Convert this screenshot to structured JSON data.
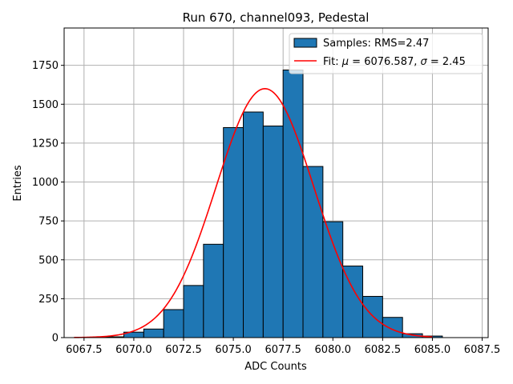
{
  "chart_data": {
    "type": "bar",
    "title": "Run 670, channel093, Pedestal",
    "xlabel": "ADC Counts",
    "ylabel": "Entries",
    "xlim": [
      6066.5,
      6087.8
    ],
    "ylim": [
      0,
      1990
    ],
    "grid": true,
    "legend_position": "top-right",
    "x_ticks": [
      "6067.5",
      "6070.0",
      "6072.5",
      "6075.0",
      "6077.5",
      "6080.0",
      "6082.5",
      "6085.0",
      "6087.5"
    ],
    "x_tick_values": [
      6067.5,
      6070.0,
      6072.5,
      6075.0,
      6077.5,
      6080.0,
      6082.5,
      6085.0,
      6087.5
    ],
    "y_ticks": [
      "0",
      "250",
      "500",
      "750",
      "1000",
      "1250",
      "1500",
      "1750"
    ],
    "y_tick_values": [
      0,
      250,
      500,
      750,
      1000,
      1250,
      1500,
      1750
    ],
    "bar_width": 1.0,
    "bins": [
      {
        "x": 6068.0,
        "value": 0
      },
      {
        "x": 6069.0,
        "value": 5
      },
      {
        "x": 6070.0,
        "value": 35
      },
      {
        "x": 6071.0,
        "value": 55
      },
      {
        "x": 6072.0,
        "value": 180
      },
      {
        "x": 6073.0,
        "value": 335
      },
      {
        "x": 6074.0,
        "value": 600
      },
      {
        "x": 6075.0,
        "value": 1350
      },
      {
        "x": 6076.0,
        "value": 1450
      },
      {
        "x": 6077.0,
        "value": 1360
      },
      {
        "x": 6078.0,
        "value": 1720
      },
      {
        "x": 6079.0,
        "value": 1100
      },
      {
        "x": 6080.0,
        "value": 745
      },
      {
        "x": 6081.0,
        "value": 460
      },
      {
        "x": 6082.0,
        "value": 265
      },
      {
        "x": 6083.0,
        "value": 130
      },
      {
        "x": 6084.0,
        "value": 25
      },
      {
        "x": 6085.0,
        "value": 10
      },
      {
        "x": 6086.0,
        "value": 0
      }
    ],
    "fit": {
      "mu": 6076.587,
      "sigma": 2.45,
      "peak": 1600,
      "x_range": [
        6067.0,
        6085.0
      ]
    },
    "series": [
      {
        "name": "Samples: RMS=2.47",
        "kind": "histogram",
        "color": "#1f77b4"
      },
      {
        "name": "Fit",
        "kind": "line",
        "color": "#ff0000"
      }
    ],
    "legend": {
      "samples_label": "Samples: RMS=2.47",
      "fit_prefix": "Fit: ",
      "mu_symbol": "μ",
      "fit_mid": " = 6076.587, ",
      "sigma_symbol": "σ",
      "fit_suffix": " = 2.45"
    }
  },
  "colors": {
    "bar_fill": "#1f77b4",
    "bar_edge": "#000000",
    "fit_line": "#ff0000",
    "grid": "#b0b0b0"
  }
}
